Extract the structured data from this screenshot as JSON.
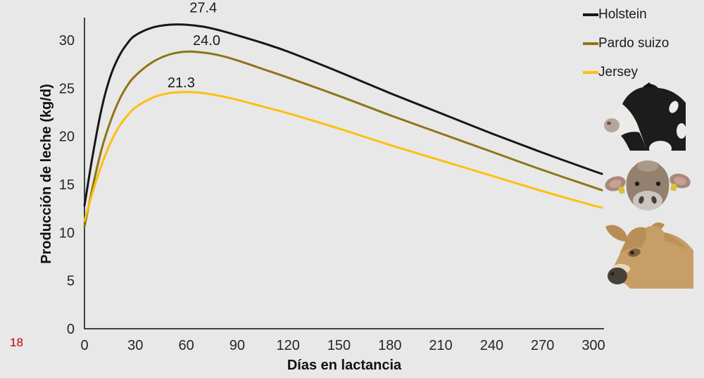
{
  "slide": {
    "background": "#e8e8e8",
    "page_number": "18",
    "page_number_color": "#c00000"
  },
  "chart_data": {
    "type": "line",
    "title": "",
    "xlabel": "Días en lactancia",
    "ylabel": "Producción de leche (kg/d)",
    "x_ticks": [
      0,
      30,
      60,
      90,
      120,
      150,
      180,
      210,
      240,
      270,
      300
    ],
    "y_ticks": [
      0,
      5,
      10,
      15,
      20,
      25,
      30
    ],
    "xlim": [
      0,
      305
    ],
    "ylim": [
      0,
      33
    ],
    "grid": false,
    "legend_position": "top-right",
    "axis_color": "#404040",
    "tick_color": "#262626",
    "series": [
      {
        "name": "Holstein",
        "color": "#171717",
        "points": [
          [
            0,
            12.8
          ],
          [
            5,
            18.2
          ],
          [
            10,
            22.8
          ],
          [
            15,
            26.1
          ],
          [
            20,
            28.2
          ],
          [
            25,
            29.6
          ],
          [
            30,
            30.5
          ],
          [
            40,
            31.3
          ],
          [
            50,
            31.6
          ],
          [
            60,
            31.6
          ],
          [
            70,
            31.4
          ],
          [
            80,
            31.0
          ],
          [
            90,
            30.5
          ],
          [
            105,
            29.7
          ],
          [
            120,
            28.8
          ],
          [
            150,
            26.7
          ],
          [
            180,
            24.5
          ],
          [
            210,
            22.4
          ],
          [
            240,
            20.3
          ],
          [
            270,
            18.3
          ],
          [
            300,
            16.4
          ],
          [
            305,
            16.1
          ]
        ]
      },
      {
        "name": "Pardo suizo",
        "color": "#8e7418",
        "points": [
          [
            0,
            10.6
          ],
          [
            5,
            14.9
          ],
          [
            10,
            18.6
          ],
          [
            15,
            21.4
          ],
          [
            20,
            23.6
          ],
          [
            25,
            25.2
          ],
          [
            30,
            26.3
          ],
          [
            40,
            27.7
          ],
          [
            50,
            28.5
          ],
          [
            60,
            28.8
          ],
          [
            70,
            28.7
          ],
          [
            80,
            28.4
          ],
          [
            90,
            27.9
          ],
          [
            105,
            27.0
          ],
          [
            120,
            26.1
          ],
          [
            150,
            24.2
          ],
          [
            180,
            22.2
          ],
          [
            210,
            20.3
          ],
          [
            240,
            18.4
          ],
          [
            270,
            16.5
          ],
          [
            300,
            14.7
          ],
          [
            305,
            14.4
          ]
        ]
      },
      {
        "name": "Jersey",
        "color": "#fdbf0f",
        "points": [
          [
            0,
            11.2
          ],
          [
            5,
            14.3
          ],
          [
            10,
            17.0
          ],
          [
            15,
            19.2
          ],
          [
            20,
            20.9
          ],
          [
            25,
            22.1
          ],
          [
            30,
            23.0
          ],
          [
            40,
            24.0
          ],
          [
            50,
            24.5
          ],
          [
            60,
            24.6
          ],
          [
            70,
            24.5
          ],
          [
            80,
            24.2
          ],
          [
            90,
            23.8
          ],
          [
            105,
            23.1
          ],
          [
            120,
            22.4
          ],
          [
            150,
            20.8
          ],
          [
            180,
            19.1
          ],
          [
            210,
            17.5
          ],
          [
            240,
            15.9
          ],
          [
            270,
            14.3
          ],
          [
            300,
            12.8
          ],
          [
            305,
            12.6
          ]
        ]
      }
    ],
    "annotations": [
      {
        "text": "27.4",
        "series": "Holstein",
        "x_day": 70,
        "y_val": 33.4
      },
      {
        "text": "24.0",
        "series": "Pardo suizo",
        "x_day": 72,
        "y_val": 30.0
      },
      {
        "text": "21.3",
        "series": "Jersey",
        "x_day": 57,
        "y_val": 25.6
      }
    ]
  },
  "cow_images": [
    "Holstein cow head photo",
    "Pardo suizo cow head photo",
    "Jersey cow head photo"
  ]
}
